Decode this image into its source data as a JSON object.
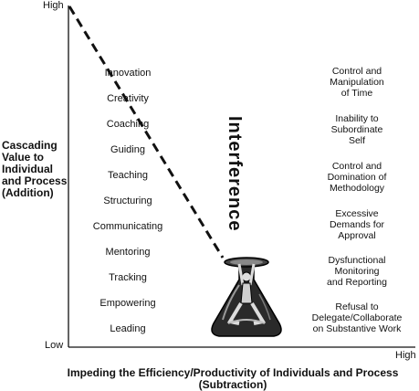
{
  "axes": {
    "y_high": "High",
    "y_low": "Low",
    "x_high": "High",
    "y_title": "Cascading\nValue to\nIndividual\nand Process\n(Addition)",
    "x_title": "Impeding the Efficiency/Productivity of Individuals and Process\n(Subtraction)"
  },
  "left_items": [
    "Innovation",
    "Creativity",
    "Coaching",
    "Guiding",
    "Teaching",
    "Structuring",
    "Communicating",
    "Mentoring",
    "Tracking",
    "Empowering",
    "Leading"
  ],
  "center_label": "Interference",
  "right_items": [
    "Control and\nManipulation\nof Time",
    "Inability to\nSubordinate\nSelf",
    "Control and\nDomination of\nMethodology",
    "Excessive\nDemands for\nApproval",
    "Dysfunctional\nMonitoring\nand Reporting",
    "Refusal to\nDelegate/Collaborate\non Substantive Work"
  ],
  "colors": {
    "ink": "#111111",
    "flask": "#1a1a1a"
  },
  "icons": [
    "flask-with-figure-icon"
  ]
}
